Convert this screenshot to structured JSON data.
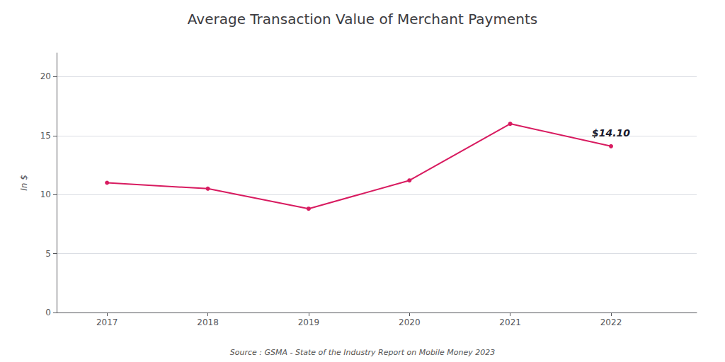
{
  "chart_data": {
    "type": "line",
    "title": "Average Transaction Value of Merchant Payments",
    "ylabel": "In $",
    "x": [
      2017,
      2018,
      2019,
      2020,
      2021,
      2022
    ],
    "values": [
      11.0,
      10.5,
      8.8,
      11.2,
      16.0,
      14.1
    ],
    "color": "#d81b60",
    "marker": "circle",
    "xlim": [
      2016.5,
      2022.85
    ],
    "xticks": [
      2017,
      2018,
      2019,
      2020,
      2021,
      2022
    ],
    "ylim": [
      0,
      22
    ],
    "yticks": [
      0,
      5,
      10,
      15,
      20
    ],
    "grid": true,
    "annotations": [
      {
        "text": "$14.10",
        "x": 2022,
        "y": 14.1
      },
      {
        "text": "Source : GSMA - State of the Industry Report on Mobile Money 2023"
      }
    ]
  }
}
